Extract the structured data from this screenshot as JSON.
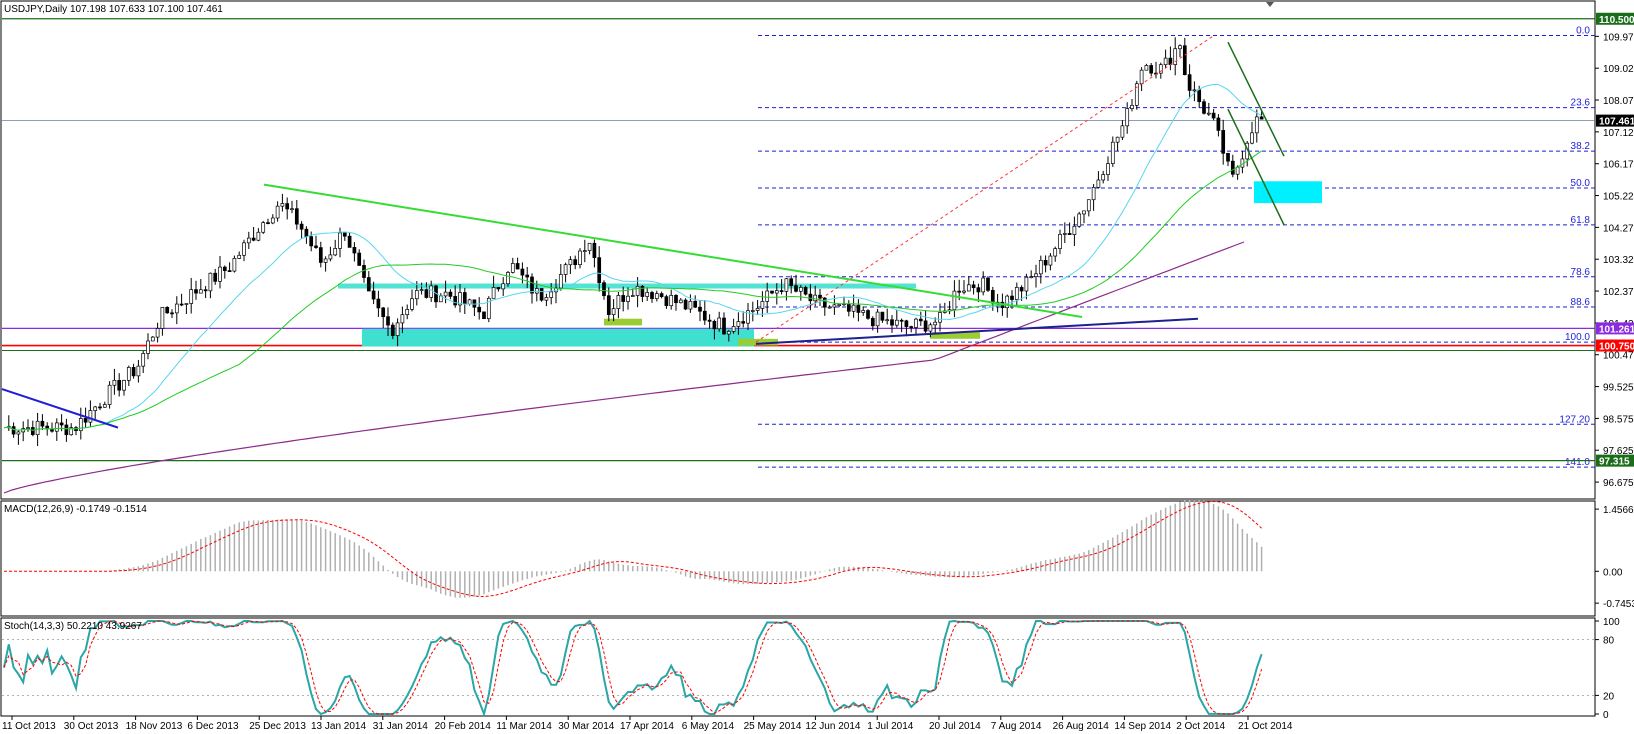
{
  "main": {
    "header": "USDJPY,Daily  107.198 107.633 107.100 107.461",
    "ylim": [
      96.2,
      111.0
    ],
    "ticks": [
      "109.975",
      "109.025",
      "108.075",
      "107.125",
      "106.175",
      "105.225",
      "104.275",
      "103.325",
      "102.375",
      "101.425",
      "100.475",
      "99.525",
      "98.575",
      "97.625",
      "96.675"
    ],
    "badges": [
      {
        "label": "110.500",
        "value": 110.5,
        "color": "#1a6e1a"
      },
      {
        "label": "107.461",
        "value": 107.461,
        "color": "#000000"
      },
      {
        "label": "101.261",
        "value": 101.261,
        "color": "#8a2be2"
      },
      {
        "label": "100.750",
        "value": 100.75,
        "color": "#ff0000"
      },
      {
        "label": "97.315",
        "value": 97.315,
        "color": "#1a6e1a"
      }
    ],
    "fib_levels": [
      {
        "label": "0.0",
        "value": 110.0
      },
      {
        "label": "23.6",
        "value": 107.85
      },
      {
        "label": "38.2",
        "value": 106.55
      },
      {
        "label": "50.0",
        "value": 105.45
      },
      {
        "label": "61.8",
        "value": 104.35
      },
      {
        "label": "78.6",
        "value": 102.8
      },
      {
        "label": "88.6",
        "value": 101.9
      },
      {
        "label": "100.0",
        "value": 100.85
      },
      {
        "label": "127.20",
        "value": 98.4
      },
      {
        "label": "141.0",
        "value": 97.12
      }
    ]
  },
  "macd": {
    "label": "MACD(12,26,9) -0.1749 -0.1514",
    "ticks": [
      "1.4566",
      "0.00",
      "-0.7453"
    ],
    "ylim": [
      -1.0,
      1.6
    ]
  },
  "stoch": {
    "label": "Stoch(14,3,3) 50.2210 43.9267",
    "ticks": [
      "100",
      "80",
      "20",
      "0"
    ]
  },
  "xaxis": {
    "ticks": [
      "11 Oct 2013",
      "30 Oct 2013",
      "18 Nov 2013",
      "6 Dec 2013",
      "25 Dec 2013",
      "13 Jan 2014",
      "31 Jan 2014",
      "20 Feb 2014",
      "11 Mar 2014",
      "30 Mar 2014",
      "17 Apr 2014",
      "6 May 2014",
      "25 May 2014",
      "12 Jun 2014",
      "1 Jul 2014",
      "20 Jul 2014",
      "7 Aug 2014",
      "26 Aug 2014",
      "14 Sep 2014",
      "2 Oct 2014",
      "21 Oct 2014"
    ]
  },
  "colors": {
    "price": "#000000",
    "ma_fast": "#57d6f0",
    "ma_mid": "#22cc22",
    "ma_slow": "#8b2a8b",
    "fib": "#1f1fd9",
    "trend_green": "#33dd33",
    "zone": "#40e0d0",
    "macd_hist": "#b0b0b0",
    "macd_signal": "#ff0000",
    "stoch_main": "#2aa6a6",
    "stoch_signal": "#ff0000"
  },
  "chart_data": {
    "type": "candlestick",
    "title": "USDJPY,Daily",
    "x_range": [
      "11 Oct 2013",
      "21 Oct 2014"
    ],
    "close_path": [
      [
        "11 Oct 2013",
        98.3
      ],
      [
        "30 Oct 2013",
        98.3
      ],
      [
        "8 Nov 2013",
        99.2
      ],
      [
        "18 Nov 2013",
        100.1
      ],
      [
        "25 Nov 2013",
        101.6
      ],
      [
        "6 Dec 2013",
        102.4
      ],
      [
        "16 Dec 2013",
        103.1
      ],
      [
        "25 Dec 2013",
        104.3
      ],
      [
        "31 Dec 2013",
        105.0
      ],
      [
        "6 Jan 2014",
        104.4
      ],
      [
        "13 Jan 2014",
        103.2
      ],
      [
        "20 Jan 2014",
        104.2
      ],
      [
        "27 Jan 2014",
        102.2
      ],
      [
        "3 Feb 2014",
        101.2
      ],
      [
        "10 Feb 2014",
        102.3
      ],
      [
        "20 Feb 2014",
        102.3
      ],
      [
        "3 Mar 2014",
        101.7
      ],
      [
        "11 Mar 2014",
        103.2
      ],
      [
        "20 Mar 2014",
        102.2
      ],
      [
        "30 Mar 2014",
        103.2
      ],
      [
        "4 Apr 2014",
        104.0
      ],
      [
        "10 Apr 2014",
        101.8
      ],
      [
        "17 Apr 2014",
        102.5
      ],
      [
        "25 Apr 2014",
        102.3
      ],
      [
        "6 May 2014",
        101.8
      ],
      [
        "15 May 2014",
        101.3
      ],
      [
        "25 May 2014",
        101.9
      ],
      [
        "2 Jun 2014",
        102.6
      ],
      [
        "12 Jun 2014",
        102.0
      ],
      [
        "20 Jun 2014",
        101.8
      ],
      [
        "1 Jul 2014",
        101.5
      ],
      [
        "10 Jul 2014",
        101.3
      ],
      [
        "20 Jul 2014",
        101.5
      ],
      [
        "25 Jul 2014",
        102.5
      ],
      [
        "1 Aug 2014",
        102.6
      ],
      [
        "7 Aug 2014",
        102.0
      ],
      [
        "15 Aug 2014",
        102.6
      ],
      [
        "26 Aug 2014",
        104.0
      ],
      [
        "2 Sep 2014",
        105.0
      ],
      [
        "9 Sep 2014",
        106.5
      ],
      [
        "14 Sep 2014",
        107.5
      ],
      [
        "19 Sep 2014",
        109.2
      ],
      [
        "25 Sep 2014",
        109.0
      ],
      [
        "1 Oct 2014",
        109.9
      ],
      [
        "2 Oct 2014",
        108.7
      ],
      [
        "7 Oct 2014",
        107.9
      ],
      [
        "10 Oct 2014",
        107.5
      ],
      [
        "14 Oct 2014",
        106.4
      ],
      [
        "16 Oct 2014",
        105.6
      ],
      [
        "21 Oct 2014",
        107.0
      ],
      [
        "23 Oct 2014",
        107.46
      ]
    ]
  }
}
